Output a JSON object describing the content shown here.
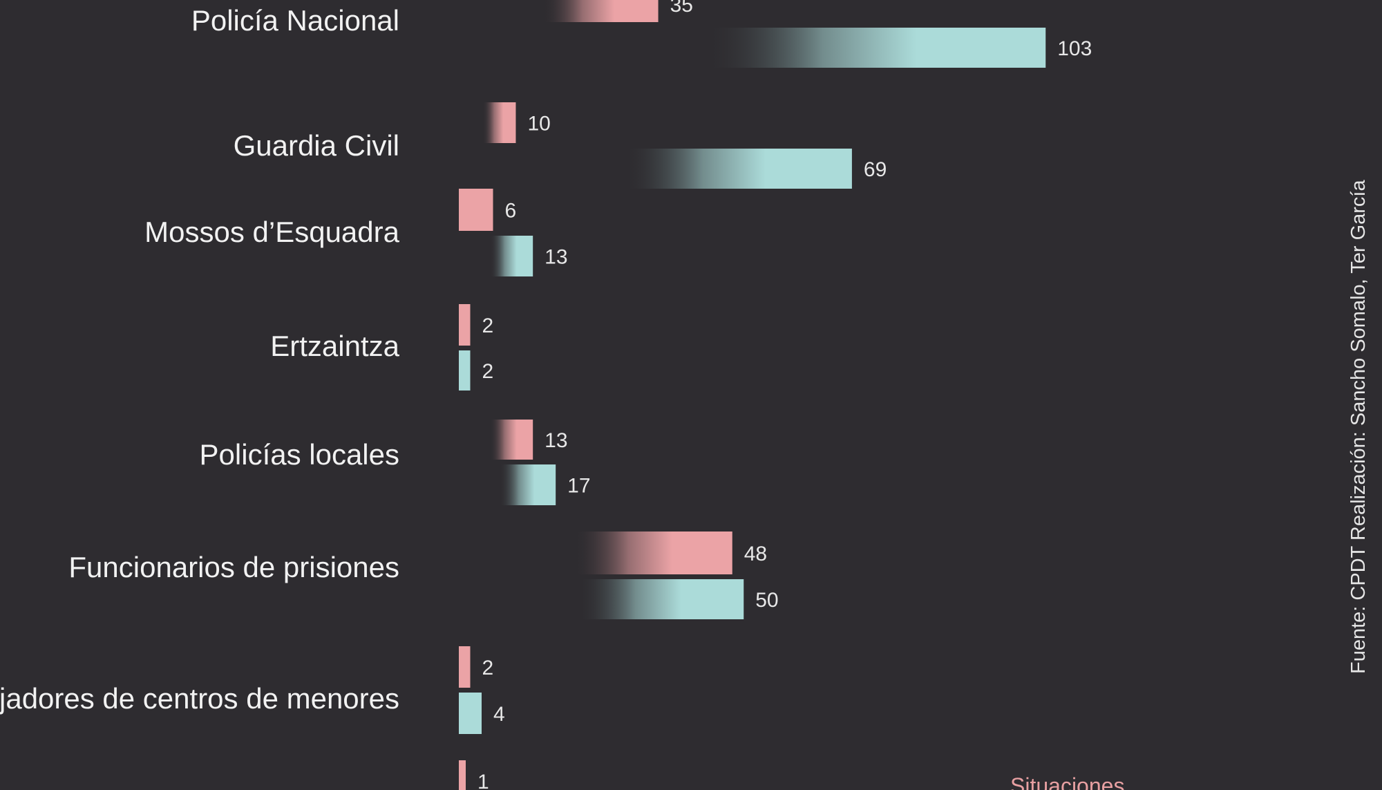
{
  "chart_data": {
    "type": "bar",
    "orientation": "horizontal",
    "categories": [
      "Policía Nacional",
      "Guardia Civil",
      "Mossos d’Esquadra",
      "Ertzaintza",
      "Policías locales",
      "Funcionarios de prisiones",
      "Trabajadores de centros de menores",
      ""
    ],
    "series": [
      {
        "color": "#eba3a6",
        "values": [
          35,
          10,
          6,
          2,
          13,
          48,
          2,
          1
        ]
      },
      {
        "color": "#abdbd9",
        "values": [
          103,
          69,
          13,
          2,
          17,
          50,
          4,
          null
        ]
      }
    ],
    "legend": {
      "label": "Situaciones",
      "position": "bottom-right"
    },
    "grid": false
  },
  "source": "Fuente: CPDT  Realización: Sancho Somalo, Ter García",
  "colors": {
    "background": "#2e2c30",
    "pink": "#eba3a6",
    "teal": "#abdbd9",
    "text": "#f2f2f2"
  }
}
